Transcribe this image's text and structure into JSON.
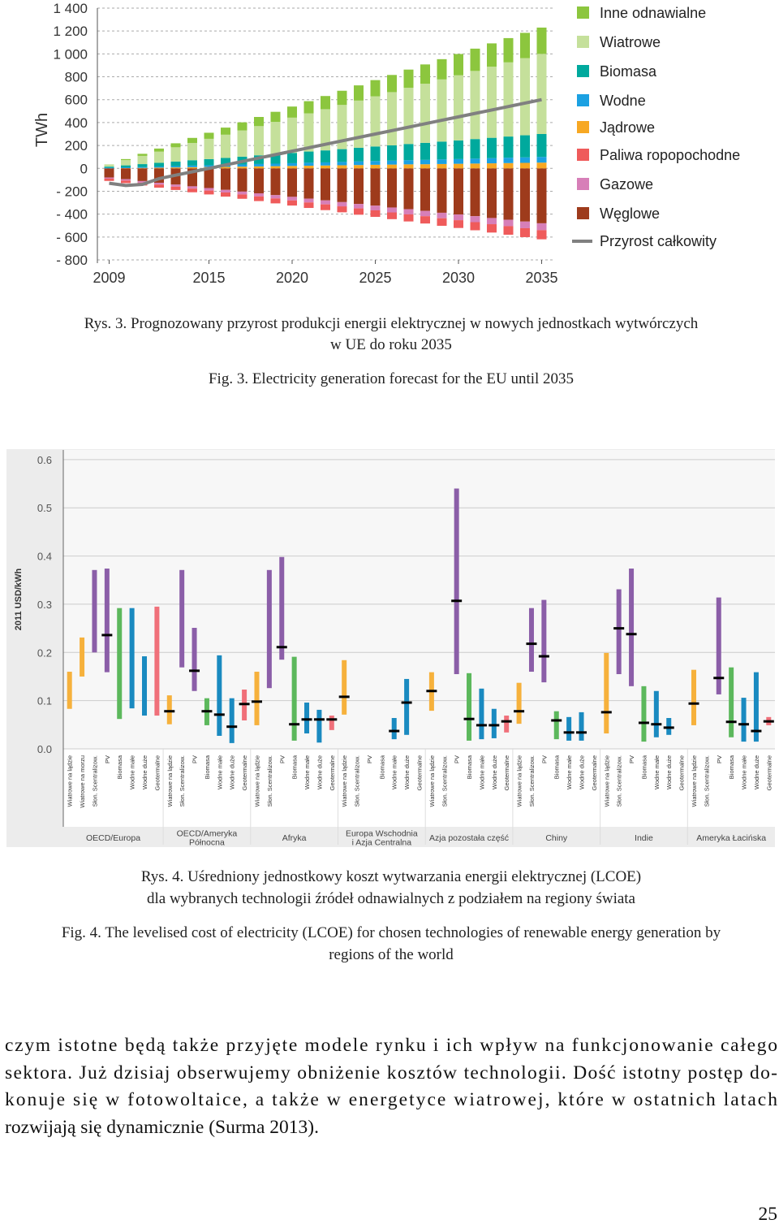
{
  "chart_data": [
    {
      "type": "bar",
      "stacked": true,
      "y_label": "TWh",
      "x": [
        2009,
        2010,
        2011,
        2012,
        2013,
        2014,
        2015,
        2016,
        2017,
        2018,
        2019,
        2020,
        2021,
        2022,
        2023,
        2024,
        2025,
        2026,
        2027,
        2028,
        2029,
        2030,
        2031,
        2032,
        2033,
        2034,
        2035
      ],
      "xlim": [
        2008,
        2036
      ],
      "xticks": [
        2009,
        2015,
        2020,
        2025,
        2030,
        2035
      ],
      "ylim": [
        -800,
        1400
      ],
      "yticks": [
        {
          "value": 1400,
          "label": "1 400"
        },
        {
          "value": 1200,
          "label": "1 200"
        },
        {
          "value": 1000,
          "label": "1 000"
        },
        800,
        600,
        400,
        200,
        0,
        {
          "value": -200,
          "label": "- 200"
        },
        {
          "value": -400,
          "label": "- 400"
        },
        {
          "value": -600,
          "label": "- 600"
        },
        {
          "value": -800,
          "label": "- 800"
        }
      ],
      "grid": true,
      "legend": "right",
      "series": [
        {
          "name": "Inne odnawialne",
          "color": "#8cc63e",
          "values": [
            0,
            9,
            18,
            27,
            35,
            44,
            53,
            62,
            71,
            80,
            88,
            97,
            106,
            115,
            124,
            133,
            142,
            150,
            159,
            168,
            177,
            186,
            195,
            204,
            212,
            221,
            230
          ]
        },
        {
          "name": "Wiatrowe",
          "color": "#c5e09b",
          "values": [
            20,
            46,
            72,
            98,
            125,
            151,
            177,
            203,
            229,
            255,
            282,
            308,
            334,
            360,
            386,
            412,
            438,
            465,
            491,
            517,
            543,
            569,
            595,
            621,
            648,
            674,
            700
          ]
        },
        {
          "name": "Biomasa",
          "color": "#00a99d",
          "values": [
            10,
            17,
            25,
            32,
            39,
            47,
            54,
            61,
            68,
            76,
            83,
            90,
            98,
            105,
            112,
            120,
            127,
            134,
            142,
            149,
            156,
            163,
            171,
            178,
            185,
            193,
            200
          ]
        },
        {
          "name": "Wodne",
          "color": "#1ba1e2",
          "values": [
            5,
            7,
            8,
            10,
            12,
            14,
            15,
            17,
            19,
            21,
            22,
            24,
            26,
            27,
            29,
            31,
            33,
            34,
            36,
            38,
            40,
            41,
            43,
            45,
            47,
            48,
            50
          ]
        },
        {
          "name": "Jądrowe",
          "color": "#f7a823",
          "values": [
            0,
            2,
            4,
            6,
            8,
            10,
            12,
            13,
            15,
            17,
            19,
            21,
            23,
            25,
            27,
            29,
            31,
            33,
            35,
            36,
            38,
            40,
            42,
            44,
            46,
            48,
            50
          ]
        },
        {
          "name": "Paliwa ropopochodne",
          "color": "#ef5b5b",
          "values": [
            -20,
            -22,
            -25,
            -27,
            -29,
            -32,
            -34,
            -36,
            -38,
            -41,
            -43,
            -45,
            -48,
            -50,
            -52,
            -55,
            -57,
            -59,
            -62,
            -64,
            -66,
            -68,
            -71,
            -73,
            -75,
            -78,
            -80
          ]
        },
        {
          "name": "Gazowe",
          "color": "#d77fb8",
          "values": [
            -10,
            -12,
            -14,
            -16,
            -18,
            -20,
            -22,
            -23,
            -25,
            -27,
            -29,
            -31,
            -33,
            -35,
            -37,
            -39,
            -41,
            -43,
            -45,
            -46,
            -48,
            -50,
            -52,
            -54,
            -56,
            -58,
            -60
          ]
        },
        {
          "name": "Węglowe",
          "color": "#9e3b1c",
          "values": [
            -80,
            -95,
            -111,
            -126,
            -142,
            -157,
            -172,
            -188,
            -203,
            -218,
            -234,
            -249,
            -265,
            -280,
            -295,
            -311,
            -326,
            -342,
            -357,
            -372,
            -388,
            -403,
            -418,
            -434,
            -449,
            -465,
            -480
          ]
        },
        {
          "name": "Przyrost całkowity",
          "type": "line",
          "color": "#808080",
          "values": [
            -130,
            -150,
            -140,
            -90,
            -60,
            -30,
            0,
            30,
            60,
            90,
            120,
            150,
            180,
            210,
            240,
            270,
            300,
            330,
            360,
            390,
            420,
            450,
            480,
            510,
            540,
            570,
            600
          ]
        }
      ]
    },
    {
      "type": "range",
      "y_label": "2011 USD/kWh",
      "ylim": [
        0,
        0.62
      ],
      "yticks": [
        {
          "value": 0,
          "label": "0.0"
        },
        0.1,
        0.2,
        0.3,
        0.4,
        0.5,
        0.6
      ],
      "grid": true,
      "regions": [
        {
          "name": [
            "OECD/Europa"
          ],
          "categories": [
            "Wiatrowe na lądzie",
            "Wiatrowe na morzu",
            "Słon. Scentralizow.",
            "PV",
            "Biomasa",
            "Wodne małe",
            "Wodne duże",
            "Geotermalne"
          ],
          "colors": [
            "#f6b13c",
            "#f6b13c",
            "#8b5ea8",
            "#8b5ea8",
            "#5cb85c",
            "#1a8ac0",
            "#1a8ac0",
            "#f0707a"
          ],
          "low": [
            0.083,
            0.15,
            0.2,
            0.159,
            0.062,
            0.084,
            0.069,
            0.069
          ],
          "high": [
            0.16,
            0.231,
            0.371,
            0.374,
            0.292,
            0.292,
            0.192,
            0.295
          ],
          "mid": [
            null,
            null,
            null,
            0.236,
            null,
            null,
            null,
            null
          ]
        },
        {
          "name": [
            "OECD/Ameryka",
            "Północna"
          ],
          "categories": [
            "Wiatrowe na lądzie",
            "Słon. Scentralizow.",
            "PV",
            "Biomasa",
            "Wodne małe",
            "Wodne duże",
            "Geotermalne"
          ],
          "colors": [
            "#f6b13c",
            "#8b5ea8",
            "#8b5ea8",
            "#5cb85c",
            "#1a8ac0",
            "#1a8ac0",
            "#f0707a"
          ],
          "low": [
            0.051,
            0.169,
            0.12,
            0.049,
            0.027,
            0.012,
            0.059
          ],
          "high": [
            0.111,
            0.371,
            0.251,
            0.105,
            0.194,
            0.105,
            0.123
          ],
          "mid": [
            0.078,
            null,
            0.162,
            0.078,
            0.071,
            0.046,
            0.093
          ]
        },
        {
          "name": [
            "Afryka"
          ],
          "categories": [
            "Wiatrowe na lądzie",
            "Słon. Scentralizow.",
            "PV",
            "Biomasa",
            "Wodne małe",
            "Wodne duże",
            "Geotermalne"
          ],
          "colors": [
            "#f6b13c",
            "#8b5ea8",
            "#8b5ea8",
            "#5cb85c",
            "#1a8ac0",
            "#1a8ac0",
            "#f0707a"
          ],
          "low": [
            0.049,
            0.126,
            0.185,
            0.017,
            0.032,
            0.013,
            0.039
          ],
          "high": [
            0.16,
            0.371,
            0.398,
            0.191,
            0.096,
            0.081,
            0.069
          ],
          "mid": [
            0.098,
            null,
            0.211,
            0.051,
            0.061,
            0.061,
            0.061
          ]
        },
        {
          "name": [
            "Europa Wschodnia",
            "i Azja Centralna"
          ],
          "categories": [
            "Wiatrowe na lądzie",
            "Słon. Scentralizow.",
            "PV",
            "Biomasa",
            "Wodne małe",
            "Wodne duże",
            "Geotermalne"
          ],
          "colors": [
            "#f6b13c",
            "#8b5ea8",
            "#8b5ea8",
            "#5cb85c",
            "#1a8ac0",
            "#1a8ac0",
            "#f0707a"
          ],
          "low": [
            0.071,
            null,
            null,
            null,
            0.02,
            0.029,
            null
          ],
          "high": [
            0.184,
            null,
            null,
            null,
            0.064,
            0.145,
            null
          ],
          "mid": [
            0.108,
            null,
            null,
            null,
            0.037,
            0.096,
            null
          ]
        },
        {
          "name": [
            "Azja pozostała część"
          ],
          "categories": [
            "Wiatrowe na lądzie",
            "Słon. Scentralizow.",
            "PV",
            "Biomasa",
            "Wodne małe",
            "Wodne duże",
            "Geotermalne"
          ],
          "colors": [
            "#f6b13c",
            "#8b5ea8",
            "#8b5ea8",
            "#5cb85c",
            "#1a8ac0",
            "#1a8ac0",
            "#f0707a"
          ],
          "low": [
            0.079,
            null,
            0.155,
            0.017,
            0.02,
            0.022,
            0.034
          ],
          "high": [
            0.159,
            null,
            0.54,
            0.157,
            0.125,
            0.083,
            0.069
          ],
          "mid": [
            0.12,
            null,
            0.307,
            0.062,
            0.049,
            0.049,
            0.057
          ]
        },
        {
          "name": [
            "Chiny"
          ],
          "categories": [
            "Wiatrowe na lądzie",
            "Słon. Scentralizow.",
            "PV",
            "Biomasa",
            "Wodne małe",
            "Wodne duże",
            "Geotermalne"
          ],
          "colors": [
            "#f6b13c",
            "#8b5ea8",
            "#8b5ea8",
            "#5cb85c",
            "#1a8ac0",
            "#1a8ac0",
            "#f0707a"
          ],
          "low": [
            0.052,
            0.16,
            0.138,
            0.02,
            0.017,
            0.017,
            null
          ],
          "high": [
            0.137,
            0.292,
            0.309,
            0.078,
            0.066,
            0.076,
            null
          ],
          "mid": [
            0.078,
            0.218,
            0.192,
            0.059,
            0.034,
            0.034,
            null
          ]
        },
        {
          "name": [
            "Indie"
          ],
          "categories": [
            "Wiatrowe na lądzie",
            "Słon. Scentralizow.",
            "PV",
            "Biomasa",
            "Wodne małe",
            "Wodne duże",
            "Geotermalne"
          ],
          "colors": [
            "#f6b13c",
            "#8b5ea8",
            "#8b5ea8",
            "#5cb85c",
            "#1a8ac0",
            "#1a8ac0",
            "#f0707a"
          ],
          "low": [
            0.032,
            0.155,
            0.13,
            0.015,
            0.024,
            0.029,
            null
          ],
          "high": [
            0.199,
            0.331,
            0.374,
            0.13,
            0.12,
            0.064,
            null
          ],
          "mid": [
            0.076,
            0.25,
            0.238,
            0.054,
            0.051,
            0.044,
            null
          ]
        },
        {
          "name": [
            "Ameryka Łacińska"
          ],
          "categories": [
            "Wiatrowe na lądzie",
            "Słon. Scentralizow.",
            "PV",
            "Biomasa",
            "Wodne małe",
            "Wodne duże",
            "Geotermalne"
          ],
          "colors": [
            "#f6b13c",
            "#8b5ea8",
            "#8b5ea8",
            "#5cb85c",
            "#1a8ac0",
            "#1a8ac0",
            "#f0707a"
          ],
          "low": [
            0.049,
            null,
            0.113,
            0.024,
            0.015,
            0.015,
            0.049
          ],
          "high": [
            0.164,
            null,
            0.314,
            0.169,
            0.106,
            0.159,
            0.066
          ],
          "mid": [
            0.094,
            null,
            0.147,
            0.056,
            0.051,
            0.037,
            0.057
          ]
        }
      ]
    }
  ],
  "captions": {
    "fig3_pl": [
      "Rys. 3. Prognozowany przyrost produkcji energii elektrycznej w nowych jednostkach wytwórczych",
      "w UE do roku 2035"
    ],
    "fig3_en": "Fig. 3. Electricity generation forecast for the EU until 2035",
    "fig4_pl": [
      "Rys. 4. Uśredniony jednostkowy koszt wytwarzania energii elektrycznej (LCOE)",
      "dla wybranych technologii źródeł odnawialnych z podziałem na regiony świata"
    ],
    "fig4_en": [
      "Fig. 4. The levelised cost of electricity (LCOE) for chosen technologies of renewable energy generation by",
      "regions of the world"
    ]
  },
  "body": [
    "czym istotne będą także przyjęte modele rynku i ich wpływ na funkcjonowanie całego",
    "sektora. Już dzisiaj obserwujemy obniżenie kosztów technologii. Dość istotny postęp do-",
    "konuje się w fotowoltaice, a także w energetyce wiatrowej, które w ostatnich latach",
    "rozwijają się dynamicznie (Surma 2013)."
  ],
  "page_number": 25
}
